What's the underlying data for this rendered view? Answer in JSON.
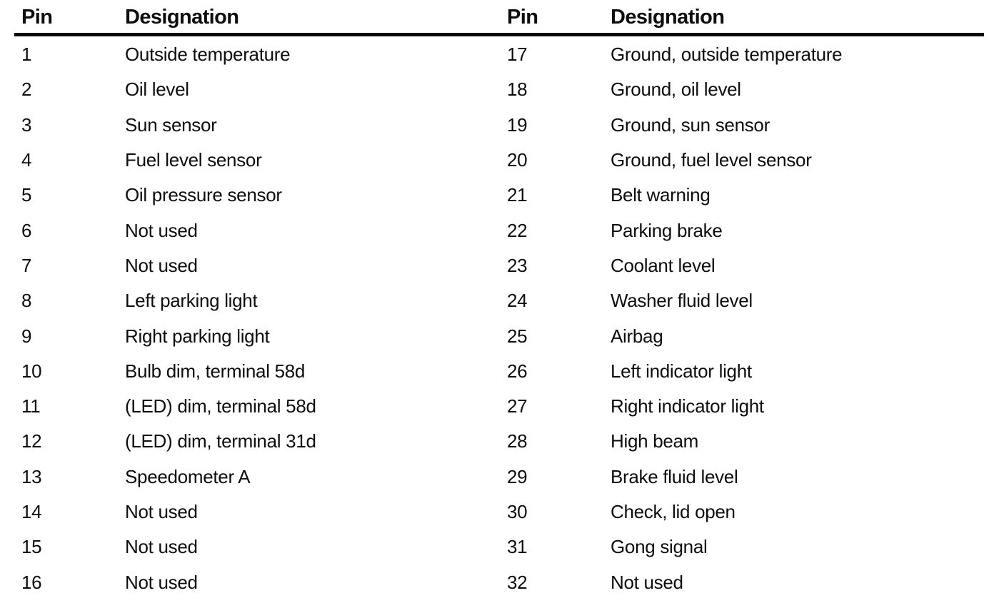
{
  "colors": {
    "ink": "#0d0d0d",
    "paper": "#ffffff",
    "rule": "#0a0a0a"
  },
  "table": {
    "headers": {
      "pin_left": "Pin",
      "designation_left": "Designation",
      "pin_right": "Pin",
      "designation_right": "Designation"
    },
    "left_rows": [
      {
        "pin": "1",
        "designation": "Outside temperature"
      },
      {
        "pin": "2",
        "designation": "Oil level"
      },
      {
        "pin": "3",
        "designation": "Sun sensor"
      },
      {
        "pin": "4",
        "designation": "Fuel level sensor"
      },
      {
        "pin": "5",
        "designation": "Oil pressure sensor"
      },
      {
        "pin": "6",
        "designation": "Not used"
      },
      {
        "pin": "7",
        "designation": "Not used"
      },
      {
        "pin": "8",
        "designation": "Left parking light"
      },
      {
        "pin": "9",
        "designation": "Right parking light"
      },
      {
        "pin": "10",
        "designation": "Bulb dim, terminal 58d"
      },
      {
        "pin": "11",
        "designation": "(LED) dim, terminal 58d"
      },
      {
        "pin": "12",
        "designation": "(LED) dim, terminal 31d"
      },
      {
        "pin": "13",
        "designation": "Speedometer A"
      },
      {
        "pin": "14",
        "designation": "Not used"
      },
      {
        "pin": "15",
        "designation": "Not used"
      },
      {
        "pin": "16",
        "designation": "Not used"
      }
    ],
    "right_rows": [
      {
        "pin": "17",
        "designation": "Ground, outside temperature"
      },
      {
        "pin": "18",
        "designation": "Ground, oil level"
      },
      {
        "pin": "19",
        "designation": "Ground, sun sensor"
      },
      {
        "pin": "20",
        "designation": "Ground, fuel level sensor"
      },
      {
        "pin": "21",
        "designation": "Belt warning"
      },
      {
        "pin": "22",
        "designation": "Parking brake"
      },
      {
        "pin": "23",
        "designation": "Coolant level"
      },
      {
        "pin": "24",
        "designation": "Washer fluid level"
      },
      {
        "pin": "25",
        "designation": "Airbag"
      },
      {
        "pin": "26",
        "designation": "Left indicator light"
      },
      {
        "pin": "27",
        "designation": "Right indicator light"
      },
      {
        "pin": "28",
        "designation": "High beam"
      },
      {
        "pin": "29",
        "designation": "Brake fluid level"
      },
      {
        "pin": "30",
        "designation": "Check, lid open"
      },
      {
        "pin": "31",
        "designation": "Gong signal"
      },
      {
        "pin": "32",
        "designation": "Not used"
      }
    ]
  }
}
